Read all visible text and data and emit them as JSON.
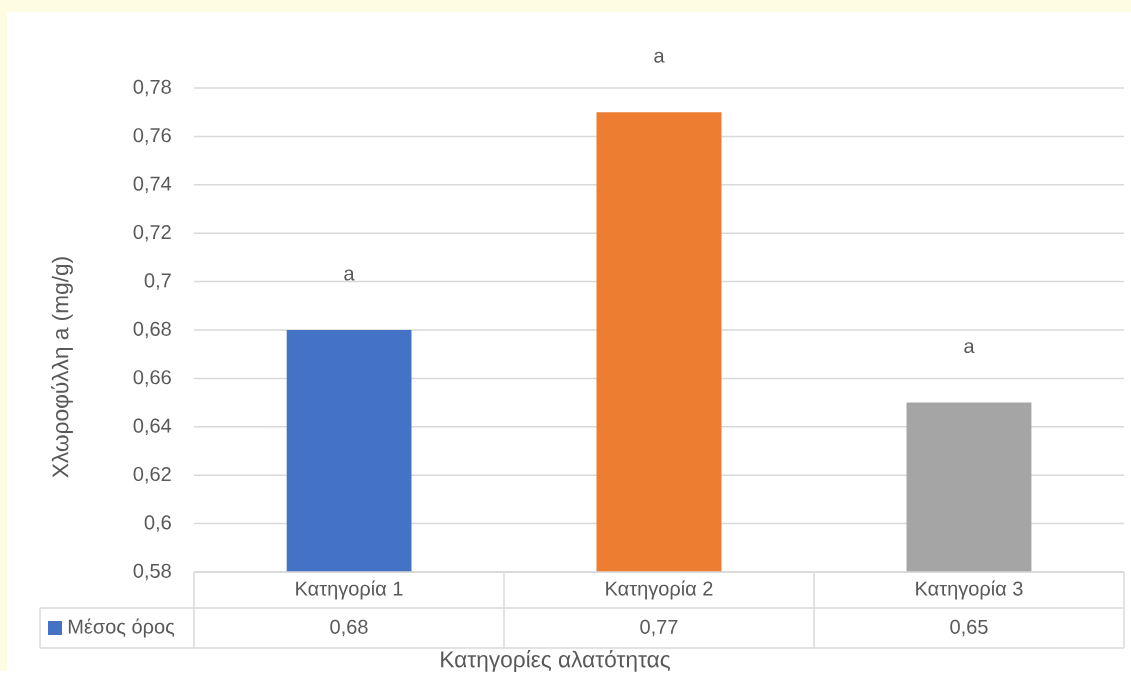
{
  "chart_data": {
    "type": "bar",
    "xlabel": "Κατηγορίες αλατότητας",
    "ylabel": "Χλωροφύλλη a (mg/g)",
    "categories": [
      "Κατηγορία 1",
      "Κατηγορία 2",
      "Κατηγορία 3"
    ],
    "series": [
      {
        "name": "Μέσος όρος",
        "color": "#4472c4",
        "colors": [
          "#4472c4",
          "#ed7d31",
          "#a5a5a5"
        ],
        "values": [
          0.68,
          0.77,
          0.65
        ],
        "value_labels": [
          "0,68",
          "0,77",
          "0,65"
        ]
      }
    ],
    "ylim": [
      0.58,
      0.78
    ],
    "yticks": [
      {
        "value": 0.58,
        "label": "0,58"
      },
      {
        "value": 0.6,
        "label": "0,6"
      },
      {
        "value": 0.62,
        "label": "0,62"
      },
      {
        "value": 0.64,
        "label": "0,64"
      },
      {
        "value": 0.66,
        "label": "0,66"
      },
      {
        "value": 0.68,
        "label": "0,68"
      },
      {
        "value": 0.7,
        "label": "0,7"
      },
      {
        "value": 0.72,
        "label": "0,72"
      },
      {
        "value": 0.74,
        "label": "0,74"
      },
      {
        "value": 0.76,
        "label": "0,76"
      },
      {
        "value": 0.78,
        "label": "0,78"
      }
    ],
    "grid": "y",
    "legend": "bottom",
    "annotations": [
      "a",
      "a",
      "a"
    ]
  }
}
